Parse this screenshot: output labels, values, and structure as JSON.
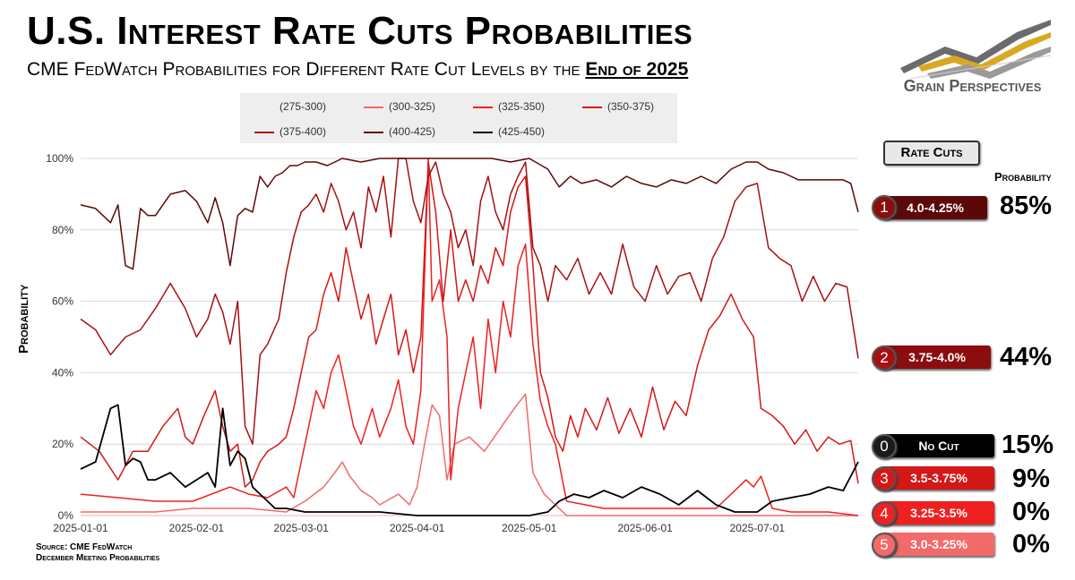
{
  "header": {
    "title": "U.S. Interest Rate Cuts Probabilities",
    "subtitle_main": "CME FedWatch Probabilities for Different Rate Cut Levels by the",
    "subtitle_highlight": "End of 2025"
  },
  "logo": {
    "name": "Grain Perspectives"
  },
  "source": {
    "line1": "Source: CME FedWatch",
    "line2": "December Meeting Probabilities"
  },
  "right_panel": {
    "header": "Rate Cuts",
    "prob_label": "Probability",
    "rows": [
      {
        "num": "1",
        "label": "4.0-4.25%",
        "pct": "85%",
        "color": "#5c0808",
        "circle": "#8b0e0e"
      },
      {
        "num": "2",
        "label": "3.75-4.0%",
        "pct": "44%",
        "color": "#8b0e0e",
        "circle": "#a51111"
      },
      {
        "num": "0",
        "label": "No Cut",
        "pct": "15%",
        "color": "#000000",
        "circle": "#1a1a1a"
      },
      {
        "num": "3",
        "label": "3.5-3.75%",
        "pct": "9%",
        "color": "#d41818",
        "circle": "#d41818"
      },
      {
        "num": "4",
        "label": "3.25-3.5%",
        "pct": "0%",
        "color": "#ee2020",
        "circle": "#ee2020"
      },
      {
        "num": "5",
        "label": "3.0-3.25%",
        "pct": "0%",
        "color": "#f26a6a",
        "circle": "#f26a6a"
      }
    ]
  },
  "chart_data": {
    "type": "area",
    "title": "U.S. Interest Rate Cuts Probabilities",
    "xlabel": "",
    "ylabel": "Probability",
    "ylim": [
      0,
      100
    ],
    "xlim": [
      0,
      208
    ],
    "yticks": [
      0,
      20,
      40,
      60,
      80,
      100
    ],
    "ytick_labels": [
      "0%",
      "20%",
      "40%",
      "60%",
      "80%",
      "100%"
    ],
    "xtick_labels": [
      "2025-01-01",
      "2025-02-01",
      "2025-03-01",
      "2025-04-01",
      "2025-05-01",
      "2025-06-01",
      "2025-07-01"
    ],
    "xtick_days": [
      0,
      31,
      59,
      90,
      120,
      151,
      181
    ],
    "grid": true,
    "legend": [
      "(275-300)",
      "(300-325)",
      "(325-350)",
      "(350-375)",
      "(375-400)",
      "(400-425)",
      "(425-450)"
    ],
    "series": [
      {
        "name": "(275-300)",
        "color": "#f4a6a6",
        "width": 0.8,
        "x": [
          0,
          208
        ],
        "values": [
          0,
          0
        ]
      },
      {
        "name": "(300-325)",
        "color": "#f26a6a",
        "width": 1.5,
        "x": [
          0,
          20,
          30,
          45,
          55,
          60,
          65,
          68,
          70,
          72,
          75,
          78,
          80,
          85,
          88,
          90,
          92,
          94,
          96,
          98,
          100,
          104,
          108,
          112,
          116,
          119,
          121,
          124,
          130,
          140,
          208
        ],
        "values": [
          1,
          1,
          2,
          2,
          1,
          4,
          8,
          12,
          15,
          11,
          7,
          5,
          3,
          6,
          3,
          8,
          20,
          31,
          28,
          10,
          20,
          22,
          18,
          24,
          30,
          34,
          12,
          6,
          0,
          0,
          0
        ]
      },
      {
        "name": "(325-350)",
        "color": "#ee2020",
        "width": 1.5,
        "x": [
          0,
          10,
          20,
          30,
          40,
          45,
          50,
          55,
          57,
          59,
          61,
          63,
          65,
          67,
          69,
          71,
          73,
          75,
          78,
          80,
          83,
          85,
          87,
          89,
          91,
          93,
          94,
          96,
          98,
          99,
          101,
          103,
          105,
          107,
          109,
          111,
          113,
          115,
          117,
          119,
          121,
          123,
          125,
          127,
          130,
          135,
          140,
          150,
          160,
          170,
          172,
          174,
          176,
          178,
          180,
          182,
          185,
          190,
          200,
          208
        ],
        "values": [
          6,
          5,
          4,
          4,
          8,
          6,
          5,
          8,
          5,
          15,
          25,
          35,
          30,
          40,
          45,
          35,
          25,
          20,
          30,
          22,
          30,
          38,
          25,
          20,
          35,
          100,
          60,
          66,
          50,
          10,
          30,
          40,
          50,
          30,
          55,
          40,
          60,
          50,
          70,
          76,
          48,
          32,
          25,
          20,
          4,
          3,
          2,
          2,
          2,
          2,
          4,
          6,
          8,
          10,
          8,
          11,
          2,
          1,
          1,
          0
        ]
      },
      {
        "name": "(350-375)",
        "color": "#d41818",
        "width": 1.5,
        "x": [
          0,
          5,
          10,
          14,
          18,
          22,
          26,
          28,
          30,
          33,
          36,
          38,
          40,
          42,
          44,
          46,
          48,
          50,
          53,
          55,
          57,
          59,
          61,
          63,
          65,
          67,
          69,
          71,
          73,
          75,
          77,
          79,
          81,
          83,
          85,
          87,
          89,
          91,
          93,
          95,
          97,
          99,
          101,
          103,
          105,
          107,
          109,
          111,
          113,
          115,
          117,
          119,
          121,
          123,
          125,
          127,
          129,
          131,
          133,
          135,
          138,
          141,
          144,
          147,
          150,
          153,
          156,
          159,
          162,
          165,
          168,
          171,
          174,
          177,
          180,
          182,
          185,
          188,
          191,
          194,
          197,
          200,
          203,
          206,
          208
        ],
        "values": [
          22,
          18,
          10,
          18,
          18,
          25,
          30,
          22,
          20,
          28,
          35,
          25,
          18,
          20,
          8,
          10,
          15,
          18,
          20,
          22,
          30,
          40,
          50,
          52,
          62,
          68,
          60,
          75,
          65,
          55,
          62,
          48,
          55,
          62,
          45,
          52,
          40,
          50,
          99,
          85,
          60,
          80,
          60,
          66,
          60,
          70,
          65,
          75,
          70,
          85,
          92,
          95,
          70,
          40,
          33,
          22,
          18,
          28,
          22,
          30,
          24,
          33,
          23,
          30,
          22,
          36,
          24,
          32,
          28,
          42,
          52,
          56,
          62,
          55,
          50,
          30,
          28,
          25,
          20,
          24,
          18,
          22,
          20,
          21,
          9
        ]
      },
      {
        "name": "(375-400)",
        "color": "#a51111",
        "width": 1.5,
        "x": [
          0,
          4,
          8,
          12,
          16,
          20,
          24,
          28,
          31,
          34,
          36,
          38,
          40,
          42,
          44,
          46,
          48,
          50,
          53,
          55,
          57,
          59,
          61,
          63,
          65,
          67,
          69,
          71,
          73,
          75,
          77,
          79,
          81,
          83,
          85,
          87,
          89,
          91,
          93,
          95,
          97,
          99,
          101,
          103,
          105,
          107,
          109,
          111,
          113,
          115,
          117,
          119,
          121,
          123,
          125,
          127,
          130,
          133,
          136,
          139,
          142,
          145,
          148,
          151,
          154,
          157,
          160,
          163,
          166,
          169,
          172,
          175,
          178,
          181,
          184,
          187,
          190,
          193,
          196,
          199,
          202,
          205,
          208
        ],
        "values": [
          55,
          52,
          45,
          50,
          52,
          58,
          65,
          58,
          50,
          55,
          62,
          57,
          48,
          60,
          25,
          20,
          45,
          48,
          55,
          68,
          78,
          85,
          87,
          90,
          85,
          93,
          88,
          80,
          85,
          75,
          92,
          85,
          95,
          78,
          100,
          100,
          88,
          82,
          95,
          99,
          90,
          85,
          75,
          80,
          70,
          88,
          95,
          85,
          80,
          90,
          95,
          99,
          75,
          70,
          60,
          70,
          66,
          72,
          62,
          68,
          62,
          76,
          64,
          60,
          70,
          62,
          67,
          68,
          60,
          72,
          78,
          88,
          92,
          93,
          75,
          72,
          70,
          60,
          67,
          60,
          65,
          64,
          44
        ]
      },
      {
        "name": "(400-425)",
        "color": "#5c0808",
        "width": 1.5,
        "x": [
          0,
          4,
          8,
          10,
          12,
          14,
          16,
          18,
          20,
          24,
          28,
          31,
          34,
          36,
          38,
          40,
          42,
          44,
          46,
          48,
          50,
          52,
          54,
          56,
          58,
          60,
          63,
          66,
          70,
          75,
          80,
          85,
          90,
          95,
          100,
          105,
          110,
          115,
          120,
          125,
          128,
          131,
          134,
          138,
          142,
          146,
          150,
          154,
          158,
          162,
          166,
          170,
          174,
          178,
          181,
          184,
          188,
          192,
          196,
          200,
          204,
          206,
          208
        ],
        "values": [
          87,
          86,
          82,
          87,
          70,
          69,
          86,
          84,
          84,
          90,
          91,
          88,
          82,
          89,
          82,
          70,
          84,
          86,
          85,
          95,
          92,
          95,
          96,
          98,
          98,
          99,
          99,
          98,
          100,
          99,
          100,
          100,
          100,
          100,
          100,
          100,
          100,
          99,
          100,
          97,
          92,
          95,
          93,
          94,
          92,
          95,
          93,
          92,
          94,
          93,
          95,
          93,
          97,
          99,
          99,
          97,
          96,
          94,
          94,
          94,
          94,
          93,
          85
        ]
      },
      {
        "name": "(425-450)",
        "color": "#000000",
        "width": 1.8,
        "x": [
          0,
          4,
          8,
          10,
          12,
          14,
          16,
          18,
          20,
          24,
          28,
          31,
          34,
          36,
          38,
          40,
          42,
          44,
          46,
          48,
          50,
          52,
          55,
          60,
          70,
          80,
          90,
          100,
          110,
          120,
          125,
          128,
          132,
          136,
          140,
          145,
          150,
          155,
          160,
          165,
          170,
          175,
          178,
          181,
          185,
          190,
          195,
          200,
          204,
          206,
          208
        ],
        "values": [
          13,
          15,
          30,
          31,
          14,
          16,
          15,
          10,
          10,
          12,
          8,
          10,
          12,
          8,
          30,
          14,
          18,
          16,
          8,
          6,
          4,
          2,
          2,
          1,
          1,
          1,
          0,
          0,
          0,
          0,
          1,
          4,
          6,
          5,
          7,
          5,
          8,
          6,
          3,
          7,
          3,
          1,
          1,
          1,
          4,
          5,
          6,
          8,
          7,
          11,
          15
        ]
      }
    ]
  }
}
